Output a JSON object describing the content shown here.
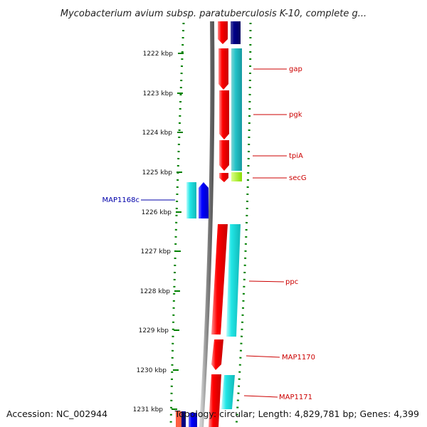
{
  "title": "Mycobacterium avium subsp. paratuberculosis K-10, complete g...",
  "accession": "Accession: NC_002944",
  "summary": "Topology: circular; Length: 4,829,781 bp; Genes: 4,399",
  "colors": {
    "forward_gene": "#ff0000",
    "reverse_gene": "#0000ff",
    "cyan": "#22dddd",
    "navy": "#000080",
    "lime": "#99ee00",
    "backbone": "#888888",
    "tick": "#008000",
    "label_forward": "#cc0000",
    "label_reverse": "#0000aa"
  },
  "scale": {
    "labels": [
      "1222 kbp",
      "1223 kbp",
      "1224 kbp",
      "1225 kbp",
      "1226 kbp",
      "1227 kbp",
      "1228 kbp",
      "1229 kbp",
      "1230 kbp",
      "1231 kbp"
    ]
  },
  "genes": [
    {
      "name": "gap",
      "strand": "forward"
    },
    {
      "name": "pgk",
      "strand": "forward"
    },
    {
      "name": "tpiA",
      "strand": "forward"
    },
    {
      "name": "secG",
      "strand": "forward"
    },
    {
      "name": "MAP1168c",
      "strand": "reverse"
    },
    {
      "name": "ppc",
      "strand": "forward"
    },
    {
      "name": "MAP1170",
      "strand": "forward"
    },
    {
      "name": "MAP1171",
      "strand": "forward"
    }
  ]
}
